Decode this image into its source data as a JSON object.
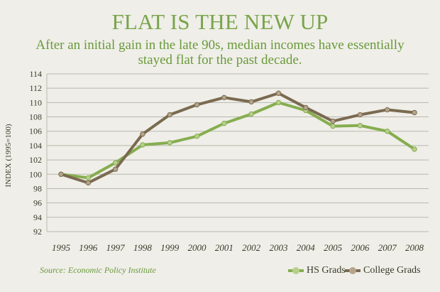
{
  "title": "FLAT IS THE NEW UP",
  "subtitle": "After an initial gain in the late 90s, median incomes have essentially stayed flat for the past decade.",
  "source": "Source: Economic Policy Institute",
  "colors": {
    "background": "#efeee8",
    "title": "#79a44a",
    "hs_line": "#86ad4f",
    "hs_marker": "#b7cf8c",
    "college_line": "#7a6a50",
    "college_marker": "#b5a58a",
    "grid": "#b8b8b0"
  },
  "chart_data": {
    "type": "line",
    "title": "FLAT IS THE NEW UP",
    "subtitle": "After an initial gain in the late 90s, median incomes have essentially stayed flat for the past decade.",
    "xlabel": "",
    "ylabel": "INDEX (1995=100)",
    "categories": [
      "1995",
      "1996",
      "1997",
      "1998",
      "1999",
      "2000",
      "2001",
      "2002",
      "2003",
      "2004",
      "2005",
      "2006",
      "2007",
      "2008"
    ],
    "ylim": [
      92,
      114
    ],
    "yticks": [
      "92",
      "94",
      "96",
      "98",
      "100",
      "102",
      "104",
      "106",
      "108",
      "110",
      "112",
      "114"
    ],
    "grid": true,
    "legend_position": "bottom-right",
    "series": [
      {
        "name": "HS Grads",
        "values": [
          100.0,
          99.5,
          101.6,
          104.1,
          104.4,
          105.3,
          107.1,
          108.4,
          110.0,
          108.9,
          106.7,
          106.8,
          106.0,
          103.5
        ]
      },
      {
        "name": "College Grads",
        "values": [
          100.0,
          98.8,
          100.7,
          105.6,
          108.3,
          109.7,
          110.7,
          110.1,
          111.3,
          109.3,
          107.4,
          108.3,
          109.0,
          108.6
        ]
      }
    ]
  }
}
